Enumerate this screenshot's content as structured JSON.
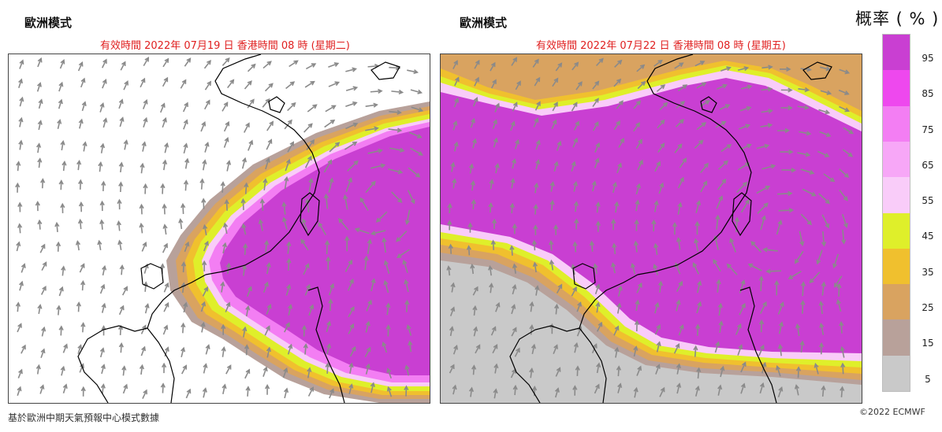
{
  "panels": [
    {
      "model_label": "歐洲模式",
      "valid_time": "有效時間 2022年 07月19 日    香港時間 08 時 (星期二)"
    },
    {
      "model_label": "歐洲模式",
      "valid_time": "有效時間 2022年 07月22 日    香港時間 08 時 (星期五)"
    }
  ],
  "legend": {
    "title": "概率 ( % )",
    "ticks": [
      "95",
      "85",
      "75",
      "65",
      "55",
      "45",
      "35",
      "25",
      "15",
      "5"
    ],
    "colors": [
      "#c93fd2",
      "#ee48ee",
      "#f37ef3",
      "#f7a7f7",
      "#f9ccf9",
      "#dfef2a",
      "#f0c02e",
      "#d9a360",
      "#b8a19a",
      "#c9c9c9"
    ]
  },
  "map_style": {
    "outer_color": "#c9c9c9",
    "edge_colors": [
      "#b8a19a",
      "#d9a360",
      "#f0c02e",
      "#dfef2a",
      "#f9ccf9",
      "#f37ef3"
    ],
    "core_color": "#c93fd2",
    "arrow_color": "#8a8a8a",
    "coast_color": "#000000"
  },
  "footer": {
    "source_note": "基於歐洲中期天氣預報中心模式數據",
    "copyright": "©2022 ECMWF"
  }
}
